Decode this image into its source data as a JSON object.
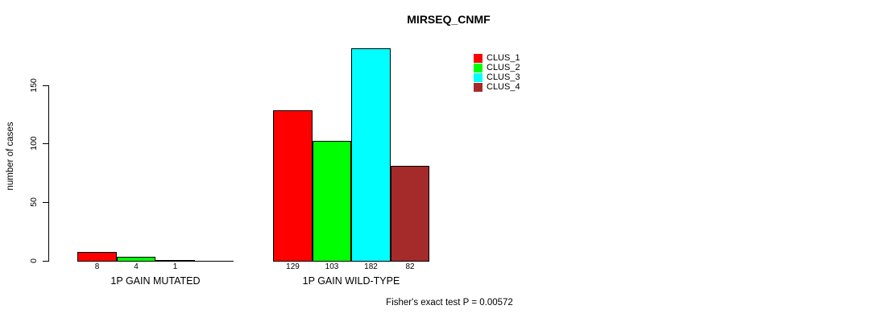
{
  "chart_data": {
    "type": "bar",
    "title": "MIRSEQ_CNMF",
    "ylabel": "number of cases",
    "xlabel": "",
    "yticks": [
      0,
      50,
      100,
      150
    ],
    "ylim": [
      0,
      190
    ],
    "grid": false,
    "legend_position": "top-right",
    "bar_border_color": "#000000",
    "categories": [
      "1P GAIN MUTATED",
      "1P GAIN WILD-TYPE"
    ],
    "series": [
      {
        "name": "CLUS_1",
        "color": "#ff0000",
        "values": [
          8,
          129
        ]
      },
      {
        "name": "CLUS_2",
        "color": "#00ff00",
        "values": [
          4,
          103
        ]
      },
      {
        "name": "CLUS_3",
        "color": "#00ffff",
        "values": [
          1,
          182
        ]
      },
      {
        "name": "CLUS_4",
        "color": "#a52a2a",
        "values": [
          0,
          82
        ]
      }
    ],
    "value_labels": [
      [
        "8",
        "4",
        "1",
        ""
      ],
      [
        "129",
        "103",
        "182",
        "82"
      ]
    ],
    "annotation": "Fisher's exact test P = 0.00572"
  }
}
